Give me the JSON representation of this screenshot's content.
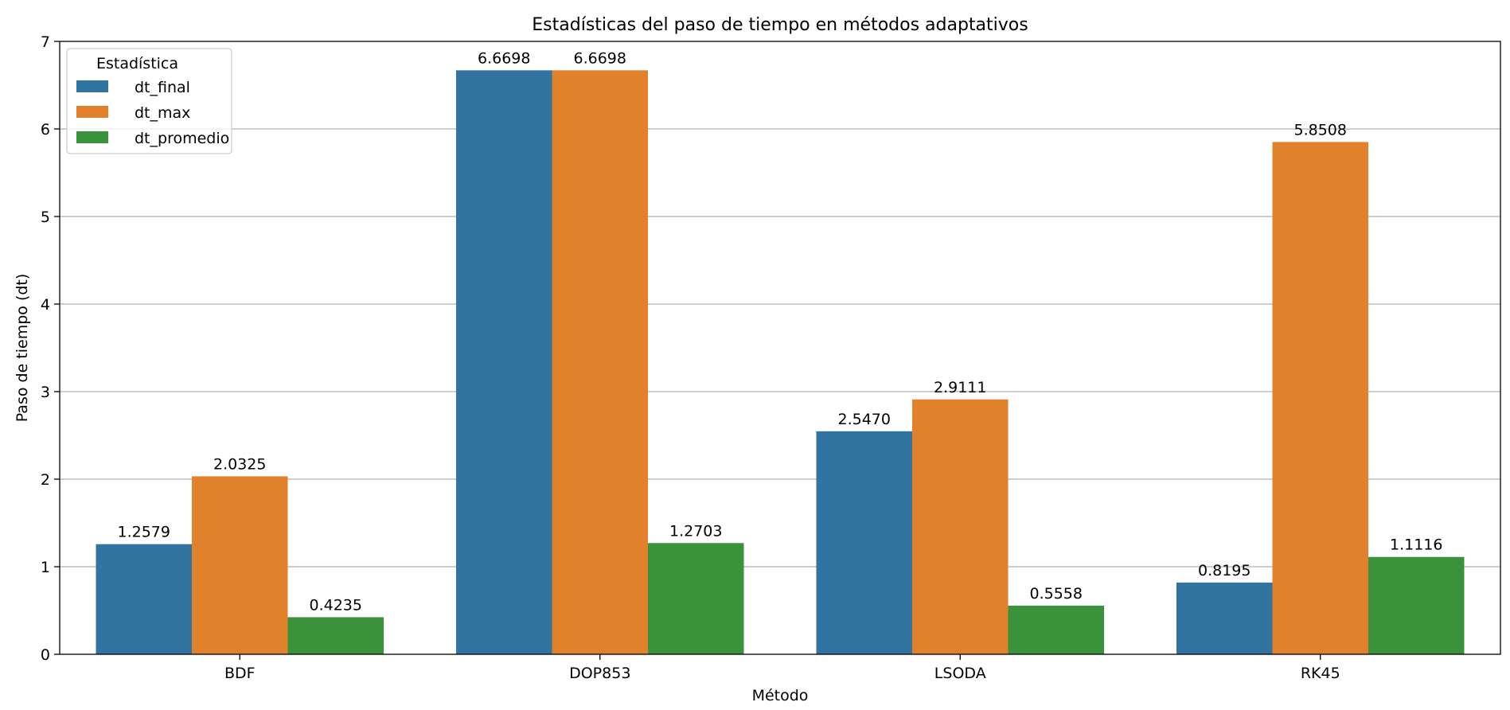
{
  "chart_data": {
    "type": "bar",
    "title": "Estadísticas del paso de tiempo en métodos adaptativos",
    "xlabel": "Método",
    "ylabel": "Paso de tiempo (dt)",
    "categories": [
      "BDF",
      "DOP853",
      "LSODA",
      "RK45"
    ],
    "ylim": [
      0,
      7
    ],
    "yticks": [
      0,
      1,
      2,
      3,
      4,
      5,
      6,
      7
    ],
    "grid": "y",
    "legend_title": "Estadística",
    "legend_position": "top-left",
    "series": [
      {
        "name": "dt_final",
        "color": "#3274a1",
        "values": [
          1.2579,
          6.6698,
          2.547,
          0.8195
        ],
        "labels": [
          "1.2579",
          "6.6698",
          "2.5470",
          "0.8195"
        ]
      },
      {
        "name": "dt_max",
        "color": "#e1812c",
        "values": [
          2.0325,
          6.6698,
          2.9111,
          5.8508
        ],
        "labels": [
          "2.0325",
          "6.6698",
          "2.9111",
          "5.8508"
        ]
      },
      {
        "name": "dt_promedio",
        "color": "#3a923a",
        "values": [
          0.4235,
          1.2703,
          0.5558,
          1.1116
        ],
        "labels": [
          "0.4235",
          "1.2703",
          "0.5558",
          "1.1116"
        ]
      }
    ]
  }
}
